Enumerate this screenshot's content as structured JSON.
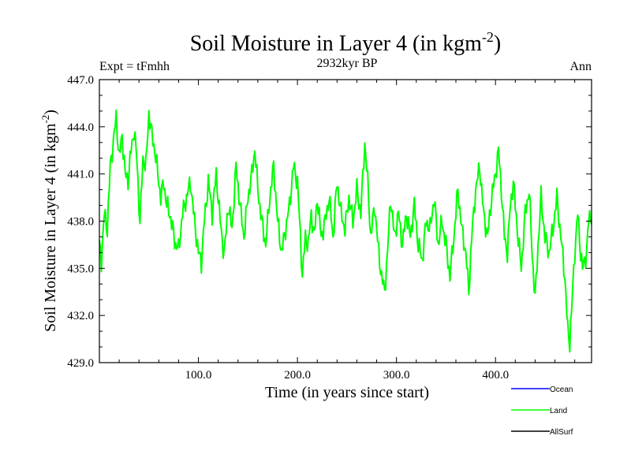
{
  "chart_data": {
    "type": "line",
    "title": "Soil Moisture in Layer 4 (in kgm",
    "title_sup": "-2",
    "title_close": ")",
    "subtitle_left": "Expt = tFmhh",
    "subtitle_center": "2932kyr BP",
    "subtitle_right": "Ann",
    "xlabel": "Time (in years since start)",
    "ylabel": "Soil Moisture in Layer 4 (in kgm",
    "ylabel_sup": "-2",
    "ylabel_close": ")",
    "xlim": [
      0,
      497
    ],
    "ylim": [
      429,
      447
    ],
    "x_ticks": [
      100,
      200,
      300,
      400
    ],
    "x_tick_labels": [
      "100.0",
      "200.0",
      "300.0",
      "400.0"
    ],
    "y_ticks": [
      429,
      432,
      435,
      438,
      441,
      444,
      447
    ],
    "y_tick_labels": [
      "429.0",
      "432.0",
      "435.0",
      "438.0",
      "441.0",
      "444.0",
      "447.0"
    ],
    "legend": [
      {
        "name": "Ocean",
        "color": "#0000ff"
      },
      {
        "name": "Land",
        "color": "#00ff00"
      },
      {
        "name": "AllSurf",
        "color": "#000000"
      }
    ],
    "series": [
      {
        "name": "Land",
        "color": "#00ff00",
        "keypoints": [
          [
            0,
            436.5
          ],
          [
            2,
            435.5
          ],
          [
            5,
            438.5
          ],
          [
            8,
            437.5
          ],
          [
            11,
            441.5
          ],
          [
            14,
            443.0
          ],
          [
            17,
            444.6
          ],
          [
            20,
            442.0
          ],
          [
            23,
            443.5
          ],
          [
            26,
            441.0
          ],
          [
            29,
            440.6
          ],
          [
            32,
            442.5
          ],
          [
            35,
            443.8
          ],
          [
            38,
            441.8
          ],
          [
            41,
            437.8
          ],
          [
            44,
            442.0
          ],
          [
            47,
            441.5
          ],
          [
            50,
            444.9
          ],
          [
            53,
            443.5
          ],
          [
            56,
            442.5
          ],
          [
            59,
            441.0
          ],
          [
            62,
            439.5
          ],
          [
            65,
            440.5
          ],
          [
            68,
            439.0
          ],
          [
            71,
            438.5
          ],
          [
            74,
            437.5
          ],
          [
            77,
            436.5
          ],
          [
            80,
            436.2
          ],
          [
            84,
            438.5
          ],
          [
            88,
            439.5
          ],
          [
            92,
            440.5
          ],
          [
            96,
            438.0
          ],
          [
            100,
            436.0
          ],
          [
            103,
            435.4
          ],
          [
            106,
            438.0
          ],
          [
            110,
            440.5
          ],
          [
            114,
            438.5
          ],
          [
            118,
            441.0
          ],
          [
            122,
            438.0
          ],
          [
            126,
            435.8
          ],
          [
            130,
            439.0
          ],
          [
            134,
            437.5
          ],
          [
            138,
            441.5
          ],
          [
            142,
            439.0
          ],
          [
            146,
            437.0
          ],
          [
            150,
            439.5
          ],
          [
            154,
            441.0
          ],
          [
            157,
            442.6
          ],
          [
            160,
            440.0
          ],
          [
            164,
            438.0
          ],
          [
            168,
            436.5
          ],
          [
            172,
            439.5
          ],
          [
            176,
            441.5
          ],
          [
            180,
            438.0
          ],
          [
            184,
            436.0
          ],
          [
            188,
            437.5
          ],
          [
            192,
            439.0
          ],
          [
            196,
            441.5
          ],
          [
            200,
            440.5
          ],
          [
            203,
            437.0
          ],
          [
            205,
            434.5
          ],
          [
            208,
            437.0
          ],
          [
            211,
            436.5
          ],
          [
            214,
            438.5
          ],
          [
            217,
            437.0
          ],
          [
            220,
            439.5
          ],
          [
            224,
            437.0
          ],
          [
            228,
            438.0
          ],
          [
            232,
            439.5
          ],
          [
            236,
            437.0
          ],
          [
            240,
            440.5
          ],
          [
            244,
            438.5
          ],
          [
            248,
            437.5
          ],
          [
            252,
            439.5
          ],
          [
            256,
            438.0
          ],
          [
            260,
            440.0
          ],
          [
            264,
            438.5
          ],
          [
            268,
            443.0
          ],
          [
            271,
            440.5
          ],
          [
            274,
            437.0
          ],
          [
            278,
            439.0
          ],
          [
            282,
            436.0
          ],
          [
            285,
            434.5
          ],
          [
            288,
            433.5
          ],
          [
            291,
            436.0
          ],
          [
            294,
            439.5
          ],
          [
            298,
            437.0
          ],
          [
            302,
            438.5
          ],
          [
            306,
            436.5
          ],
          [
            310,
            438.5
          ],
          [
            314,
            437.0
          ],
          [
            318,
            439.0
          ],
          [
            322,
            436.5
          ],
          [
            326,
            435.5
          ],
          [
            330,
            438.0
          ],
          [
            334,
            437.5
          ],
          [
            338,
            439.5
          ],
          [
            342,
            436.5
          ],
          [
            346,
            438.0
          ],
          [
            350,
            436.5
          ],
          [
            354,
            434.5
          ],
          [
            358,
            437.0
          ],
          [
            362,
            440.0
          ],
          [
            366,
            437.5
          ],
          [
            370,
            436.0
          ],
          [
            373,
            433.5
          ],
          [
            376,
            437.0
          ],
          [
            380,
            440.0
          ],
          [
            384,
            441.5
          ],
          [
            388,
            438.5
          ],
          [
            392,
            437.0
          ],
          [
            396,
            439.5
          ],
          [
            400,
            441.0
          ],
          [
            403,
            442.5
          ],
          [
            406,
            440.0
          ],
          [
            409,
            437.0
          ],
          [
            412,
            436.0
          ],
          [
            415,
            439.0
          ],
          [
            418,
            440.5
          ],
          [
            422,
            437.5
          ],
          [
            426,
            435.0
          ],
          [
            430,
            438.5
          ],
          [
            434,
            440.0
          ],
          [
            437,
            436.0
          ],
          [
            440,
            433.0
          ],
          [
            443,
            436.5
          ],
          [
            446,
            439.5
          ],
          [
            450,
            437.0
          ],
          [
            454,
            436.0
          ],
          [
            458,
            437.5
          ],
          [
            462,
            439.5
          ],
          [
            466,
            437.0
          ],
          [
            470,
            434.5
          ],
          [
            473,
            431.0
          ],
          [
            475,
            430.3
          ],
          [
            477,
            432.5
          ],
          [
            480,
            436.0
          ],
          [
            483,
            438.5
          ],
          [
            486,
            436.0
          ],
          [
            488,
            435.0
          ],
          [
            490,
            435.5
          ],
          [
            492,
            436.0
          ],
          [
            494,
            438.0
          ],
          [
            496,
            438.5
          ],
          [
            497,
            437.8
          ]
        ]
      }
    ]
  }
}
